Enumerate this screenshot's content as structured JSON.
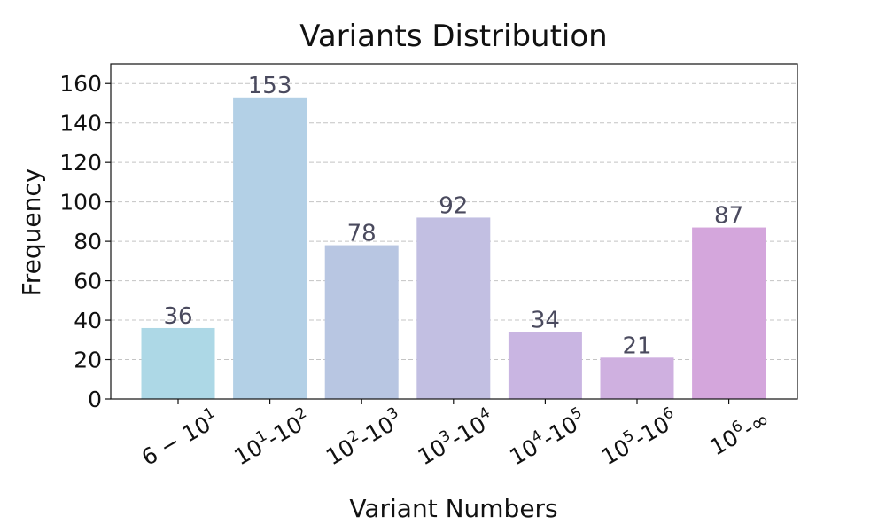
{
  "chart_data": {
    "type": "bar",
    "title": "Variants Distribution",
    "xlabel": "Variant Numbers",
    "ylabel": "Frequency",
    "ylim": [
      0,
      170
    ],
    "yticks": [
      0,
      20,
      40,
      60,
      80,
      100,
      120,
      140,
      160
    ],
    "grid": "y-dashed",
    "categories": [
      {
        "base": "6 − 10",
        "sup": "1"
      },
      {
        "base": "10",
        "sup": "1",
        "mid": "-10",
        "sup2": "2"
      },
      {
        "base": "10",
        "sup": "2",
        "mid": "-10",
        "sup2": "3"
      },
      {
        "base": "10",
        "sup": "3",
        "mid": "-10",
        "sup2": "4"
      },
      {
        "base": "10",
        "sup": "4",
        "mid": "-10",
        "sup2": "5"
      },
      {
        "base": "10",
        "sup": "5",
        "mid": "-10",
        "sup2": "6"
      },
      {
        "base": "10",
        "sup": "6",
        "mid": "-∞"
      }
    ],
    "values": [
      36,
      153,
      78,
      92,
      34,
      21,
      87
    ],
    "data_labels": [
      "36",
      "153",
      "78",
      "92",
      "34",
      "21",
      "87"
    ],
    "colors": [
      "#add8e6",
      "#b3d0e6",
      "#b8c6e2",
      "#c2bfe2",
      "#c9b5e2",
      "#cfb0e0",
      "#d4a6dc"
    ]
  }
}
